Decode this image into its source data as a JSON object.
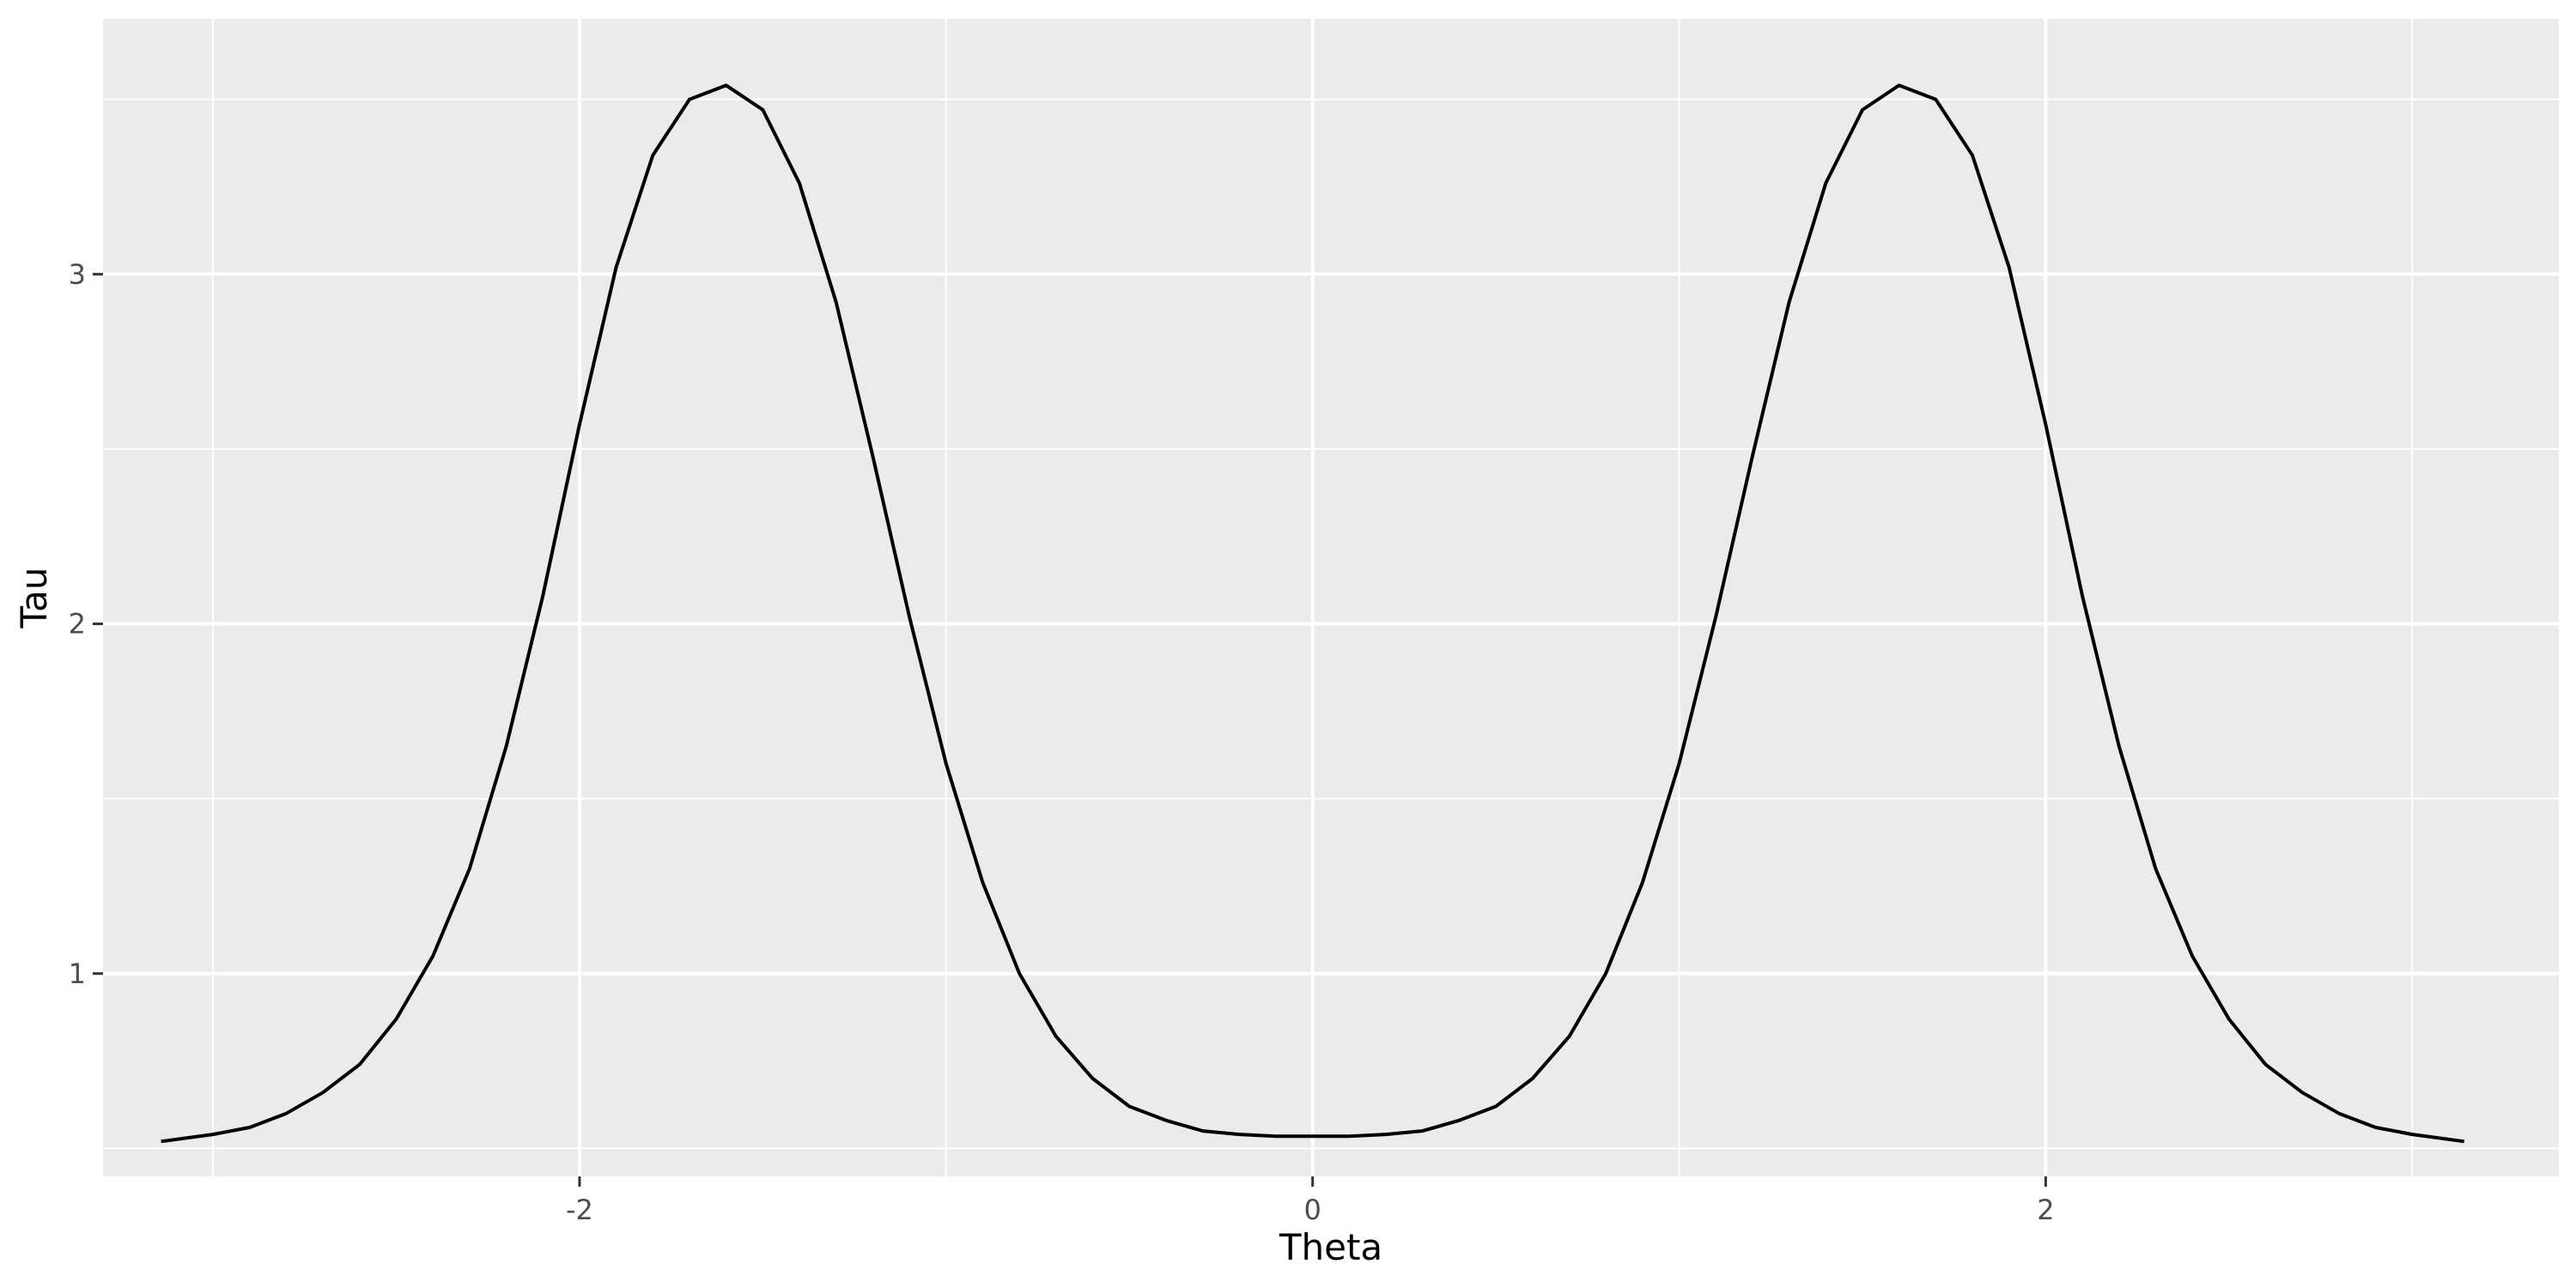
{
  "chart_data": {
    "type": "line",
    "title": "",
    "xlabel": "Theta",
    "ylabel": "Tau",
    "xlim": [
      -3.3,
      3.4
    ],
    "ylim": [
      0.42,
      3.73
    ],
    "x_ticks": [
      -2,
      0,
      2
    ],
    "x_tick_labels": [
      "-2",
      "0",
      "2"
    ],
    "y_ticks": [
      1,
      2,
      3
    ],
    "y_tick_labels": [
      "1",
      "2",
      "3"
    ],
    "x_minor_gridlines": [
      -3,
      -1,
      1,
      3
    ],
    "y_minor_gridlines": [
      0.5,
      1.5,
      2.5,
      3.5
    ],
    "grid": true,
    "legend": "none",
    "colors": {
      "panel_background": "#EBEBEB",
      "grid": "#FFFFFF",
      "line": "#000000",
      "tick_label": "#4D4D4D",
      "axis_title": "#000000"
    },
    "series": [
      {
        "x": [
          -3.1416,
          -3.0,
          -2.9,
          -2.8,
          -2.7,
          -2.6,
          -2.5,
          -2.4,
          -2.3,
          -2.2,
          -2.1,
          -2.0,
          -1.9,
          -1.8,
          -1.7,
          -1.6,
          -1.5,
          -1.4,
          -1.3,
          -1.2,
          -1.1,
          -1.0,
          -0.9,
          -0.8,
          -0.7,
          -0.6,
          -0.5,
          -0.4,
          -0.3,
          -0.2,
          -0.1,
          0.0,
          0.1,
          0.2,
          0.3,
          0.4,
          0.5,
          0.6,
          0.7,
          0.8,
          0.9,
          1.0,
          1.1,
          1.2,
          1.3,
          1.4,
          1.5,
          1.6,
          1.7,
          1.8,
          1.9,
          2.0,
          2.1,
          2.2,
          2.3,
          2.4,
          2.5,
          2.6,
          2.7,
          2.8,
          2.9,
          3.0,
          3.1416
        ],
        "y": [
          0.52,
          0.54,
          0.56,
          0.6,
          0.66,
          0.74,
          0.87,
          1.05,
          1.3,
          1.65,
          2.08,
          2.57,
          3.02,
          3.34,
          3.5,
          3.54,
          3.47,
          3.26,
          2.92,
          2.48,
          2.02,
          1.6,
          1.26,
          1.0,
          0.82,
          0.7,
          0.62,
          0.58,
          0.55,
          0.54,
          0.535,
          0.535,
          0.535,
          0.54,
          0.55,
          0.58,
          0.62,
          0.7,
          0.82,
          1.0,
          1.26,
          1.6,
          2.02,
          2.48,
          2.92,
          3.26,
          3.47,
          3.54,
          3.5,
          3.34,
          3.02,
          2.57,
          2.08,
          1.65,
          1.3,
          1.05,
          0.87,
          0.74,
          0.66,
          0.6,
          0.56,
          0.54,
          0.52
        ]
      }
    ]
  }
}
